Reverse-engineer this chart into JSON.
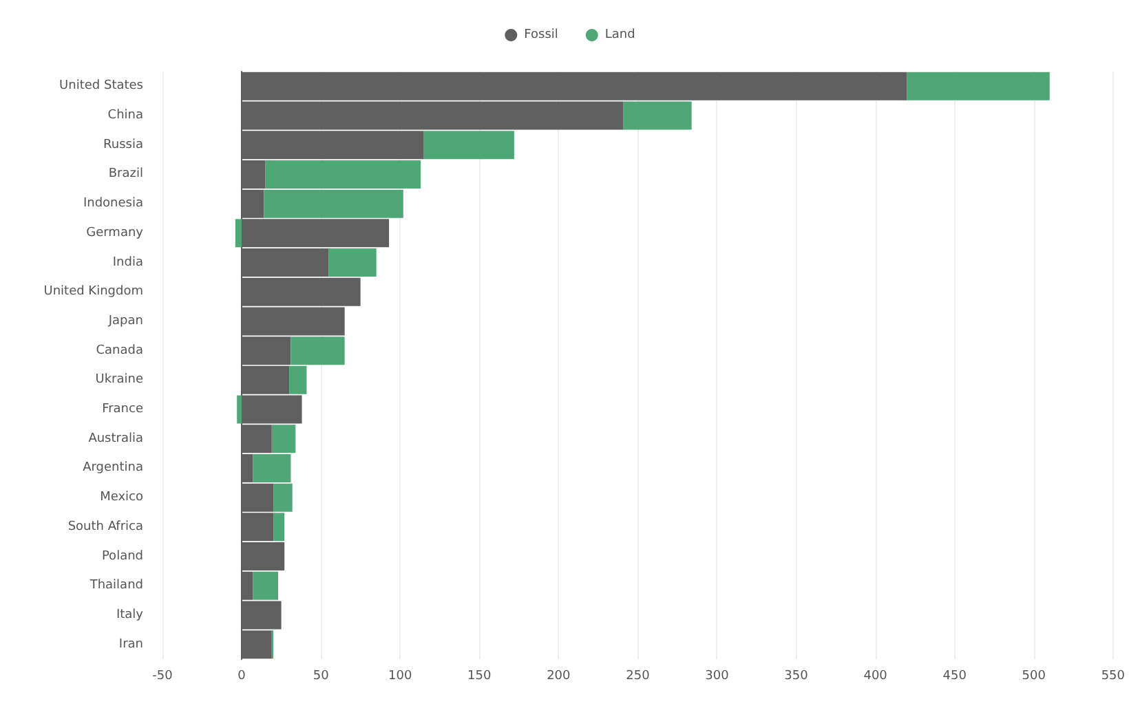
{
  "chart_data": {
    "type": "bar",
    "orientation": "horizontal",
    "stacked": true,
    "categories": [
      "United States",
      "China",
      "Russia",
      "Brazil",
      "Indonesia",
      "Germany",
      "India",
      "United Kingdom",
      "Japan",
      "Canada",
      "Ukraine",
      "France",
      "Australia",
      "Argentina",
      "Mexico",
      "South Africa",
      "Poland",
      "Thailand",
      "Italy",
      "Iran"
    ],
    "series": [
      {
        "name": "Fossil",
        "color": "#5f5f5f",
        "values": [
          420,
          241,
          115,
          15,
          14,
          93,
          55,
          75,
          65,
          31,
          30,
          38,
          19,
          7,
          20,
          20,
          27,
          7,
          25,
          19
        ]
      },
      {
        "name": "Land",
        "color": "#4fa777",
        "values": [
          90,
          43,
          57,
          98,
          88,
          -4,
          30,
          0,
          0,
          34,
          11,
          -3,
          15,
          24,
          12,
          7,
          0,
          16,
          0,
          1
        ]
      }
    ],
    "xlim": [
      -50,
      550
    ],
    "xticks": [
      -50,
      0,
      50,
      100,
      150,
      200,
      250,
      300,
      350,
      400,
      450,
      500,
      550
    ],
    "grid": "x",
    "legend": "top"
  }
}
